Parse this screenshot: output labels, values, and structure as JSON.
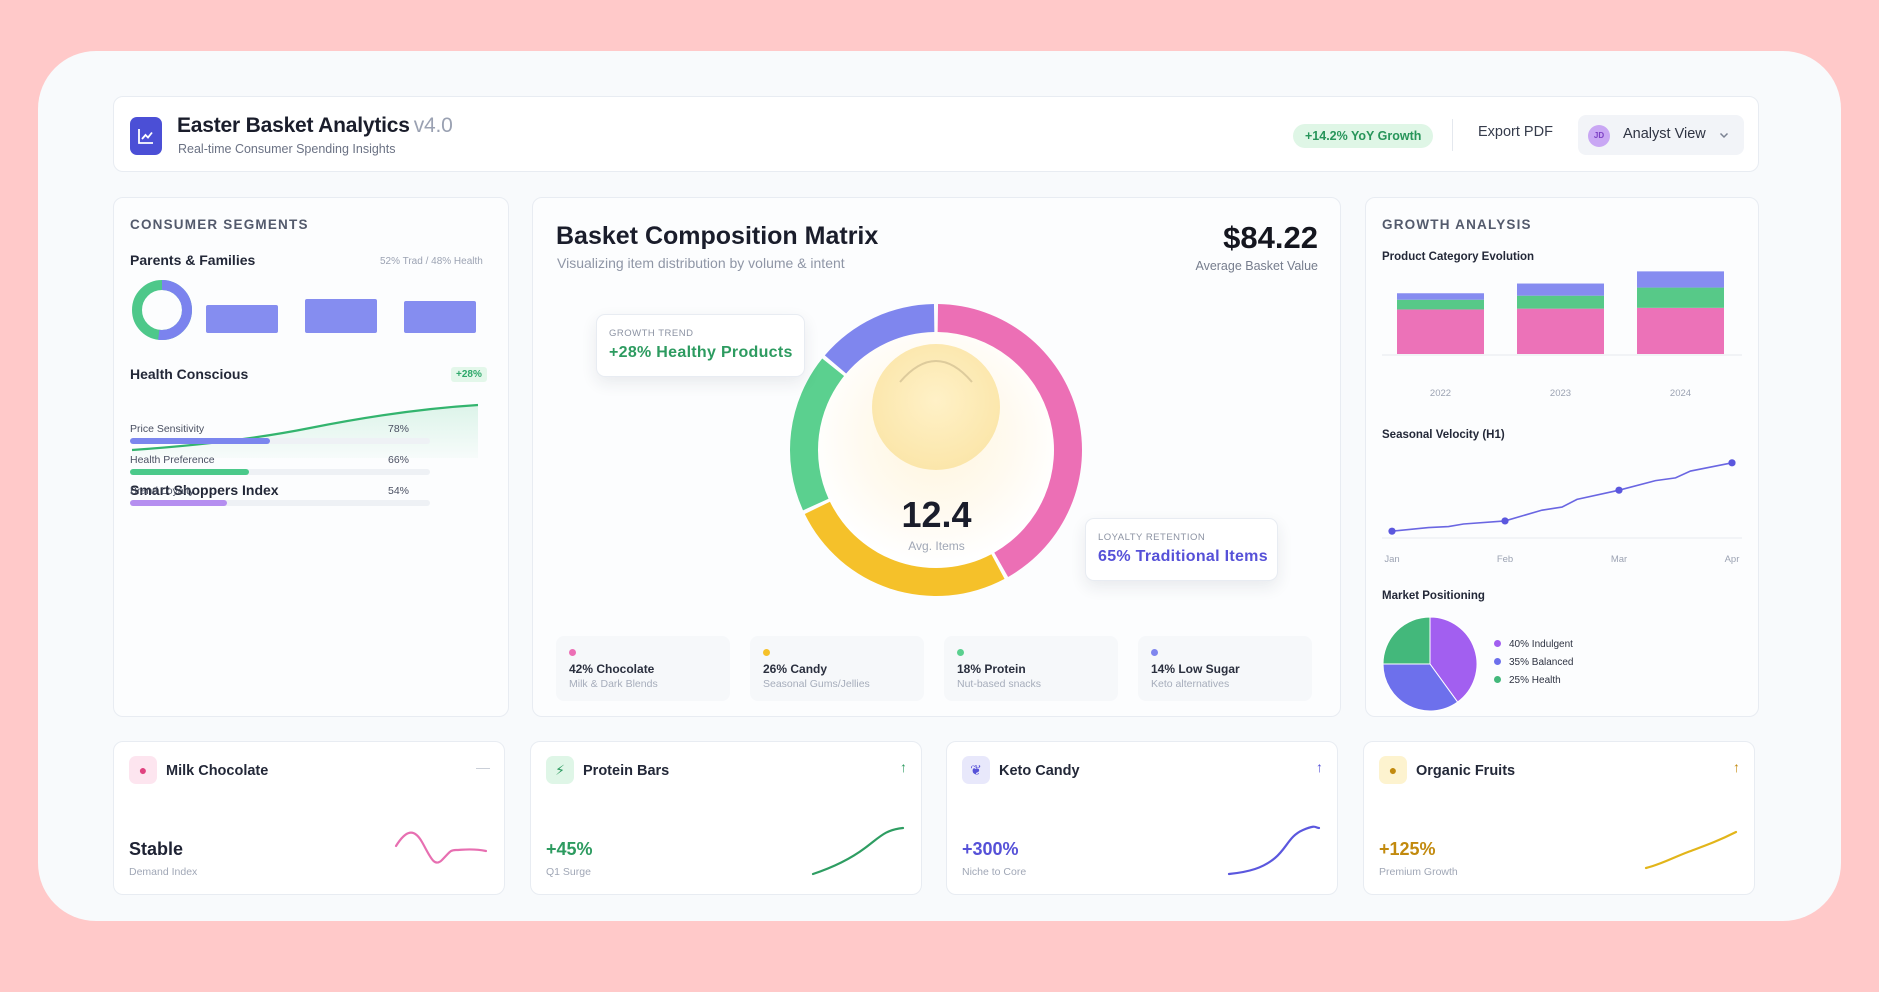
{
  "header": {
    "title": "Easter Basket Analytics",
    "version": "v4.0",
    "subtitle": "Real-time Consumer Spending Insights",
    "growth_badge": "+14.2% YoY Growth",
    "export_label": "Export PDF",
    "avatar_initials": "JD",
    "view_label": "Analyst View",
    "app_icon": "chart-line-icon"
  },
  "segments": {
    "title": "CONSUMER SEGMENTS",
    "parents": {
      "label": "Parents & Families",
      "split": "52% Trad / 48% Health",
      "ring_fraction": 0.52,
      "bars": [
        0.55,
        0.65,
        0.6
      ]
    },
    "health": {
      "label": "Health Conscious",
      "delta": "+28%"
    },
    "smart": {
      "label": "Smart Shoppers Index",
      "rows": [
        {
          "label": "Price Sensitivity",
          "value": "78%",
          "pct": 78,
          "color": "#7b86ee"
        },
        {
          "label": "Health Preference",
          "value": "66%",
          "pct": 66,
          "color": "#4bc98a"
        },
        {
          "label": "Brand Loyalty",
          "value": "54%",
          "pct": 54,
          "color": "#b58ef0"
        }
      ]
    }
  },
  "matrix": {
    "title": "Basket Composition Matrix",
    "subtitle": "Visualizing item distribution by volume & intent",
    "price": "$84.22",
    "price_label": "Average Basket Value",
    "center_value": "12.4",
    "center_label": "Avg. Items",
    "callout_left": {
      "label": "GROWTH TREND",
      "value": "+28% Healthy Products"
    },
    "callout_right": {
      "label": "LOYALTY RETENTION",
      "value": "65% Traditional Items"
    },
    "segments": [
      {
        "name": "Chocolate",
        "pct": 42,
        "color": "#ec6fb5"
      },
      {
        "name": "Candy",
        "pct": 26,
        "color": "#f5c12a"
      },
      {
        "name": "Protein",
        "pct": 18,
        "color": "#5bd08f"
      },
      {
        "name": "Low Sugar",
        "pct": 14,
        "color": "#7f86ee"
      }
    ],
    "legend": [
      {
        "title": "42% Chocolate",
        "sub": "Milk & Dark Blends",
        "color": "#ec6fb5"
      },
      {
        "title": "26% Candy",
        "sub": "Seasonal Gums/Jellies",
        "color": "#f5c12a"
      },
      {
        "title": "18% Protein",
        "sub": "Nut-based snacks",
        "color": "#5bd08f"
      },
      {
        "title": "14% Low Sugar",
        "sub": "Keto alternatives",
        "color": "#7f86ee"
      }
    ]
  },
  "growth": {
    "title": "GROWTH ANALYSIS",
    "category_title": "Product Category Evolution",
    "velocity_title": "Seasonal Velocity (H1)",
    "positioning_title": "Market Positioning",
    "pie_legend": [
      {
        "label": "40% Indulgent",
        "color": "#a25ff0"
      },
      {
        "label": "35% Balanced",
        "color": "#6d70ec"
      },
      {
        "label": "25% Health",
        "color": "#43b87b"
      }
    ]
  },
  "chart_data": [
    {
      "type": "bar",
      "title": "Product Category Evolution",
      "categories": [
        "2022",
        "2023",
        "2024"
      ],
      "series": [
        {
          "values": [
            55,
            56,
            57
          ],
          "color": "#ec72b8"
        },
        {
          "values": [
            12,
            16,
            25
          ],
          "color": "#57c988"
        },
        {
          "values": [
            8,
            15,
            20
          ],
          "color": "#868cf0"
        }
      ],
      "ylim": [
        0,
        100
      ]
    },
    {
      "type": "line",
      "title": "Seasonal Velocity (H1)",
      "x": [
        "Jan",
        "Feb",
        "Mar",
        "Apr"
      ],
      "values": [
        10,
        25,
        70,
        110
      ],
      "ylim": [
        0,
        120
      ]
    },
    {
      "type": "pie",
      "title": "Market Positioning",
      "categories": [
        "40% Indulgent",
        "35% Balanced",
        "25% Health"
      ],
      "values": [
        40,
        35,
        25
      ]
    }
  ],
  "cards": [
    {
      "name": "Milk Chocolate",
      "value": "Stable",
      "label": "Demand Index",
      "trend": "—",
      "accent": "#1e2233",
      "trend_color": "#c7ccd6",
      "spark_color": "#e76fb1",
      "icon_bg": "#fde5ef",
      "icon_color": "#e0427f",
      "icon": "chocolate-icon",
      "glyph": "●",
      "spark": "wave"
    },
    {
      "name": "Protein Bars",
      "value": "+45%",
      "label": "Q1 Surge",
      "trend": "↑",
      "accent": "#2d9b60",
      "trend_color": "#2d9b60",
      "spark_color": "#2e9d62",
      "icon_bg": "#dff6e7",
      "icon_color": "#2d9b60",
      "icon": "lightning-icon",
      "glyph": "⚡",
      "spark": "rise"
    },
    {
      "name": "Keto Candy",
      "value": "+300%",
      "label": "Niche to Core",
      "trend": "↑",
      "accent": "#5651d8",
      "trend_color": "#5651d8",
      "spark_color": "#5b57de",
      "icon_bg": "#e8e8fb",
      "icon_color": "#5651d8",
      "icon": "leaf-icon",
      "glyph": "❦",
      "spark": "scurve"
    },
    {
      "name": "Organic Fruits",
      "value": "+125%",
      "label": "Premium Growth",
      "trend": "↑",
      "accent": "#c28a0e",
      "trend_color": "#c28a0e",
      "spark_color": "#e2b51a",
      "icon_bg": "#fdf3cf",
      "icon_color": "#c28a0e",
      "icon": "apple-icon",
      "glyph": "●",
      "spark": "climb"
    }
  ]
}
